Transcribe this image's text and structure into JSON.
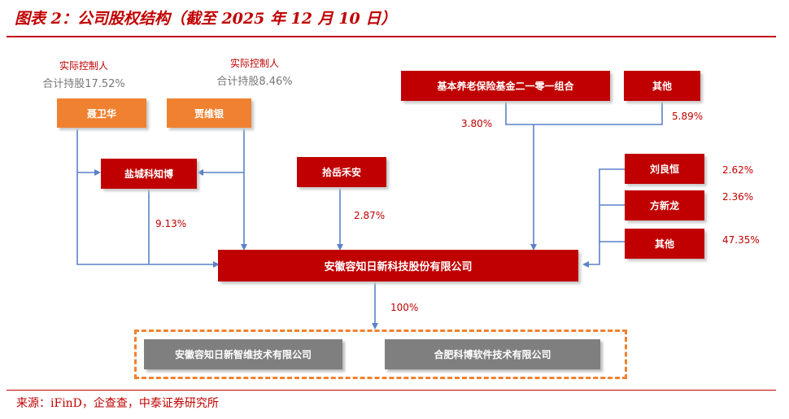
{
  "title": "图表 2：公司股权结构（截至 2025 年 12 月 10 日）",
  "source": "来源：iFinD，企查查，中泰证券研究所",
  "colors": {
    "accent": "#c00000",
    "orange": "#f08130",
    "gray": "#7f7f7f",
    "line": "#5b82c8"
  },
  "controllers": [
    {
      "role": "实际控制人",
      "holding": "合计持股17.52%",
      "name": "聂卫华"
    },
    {
      "role": "实际控制人",
      "holding": "合计持股8.46%",
      "name": "贾维银"
    }
  ],
  "nodes": {
    "yancheng": "盐城科知博",
    "shiyue": "拾岳禾安",
    "pension": "基本养老保险基金二一零一组合",
    "other_top": "其他",
    "liu": "刘良恒",
    "fang": "方新龙",
    "other_right": "其他",
    "company": "安徽容知日新科技股份有限公司",
    "sub1": "安徽容知日新智维技术有限公司",
    "sub2": "合肥科博软件技术有限公司"
  },
  "percentages": {
    "yancheng": "9.13%",
    "shiyue": "2.87%",
    "pension": "3.80%",
    "other_top": "5.89%",
    "liu": "2.62%",
    "fang": "2.36%",
    "other_right": "47.35%",
    "subsidiaries": "100%"
  }
}
